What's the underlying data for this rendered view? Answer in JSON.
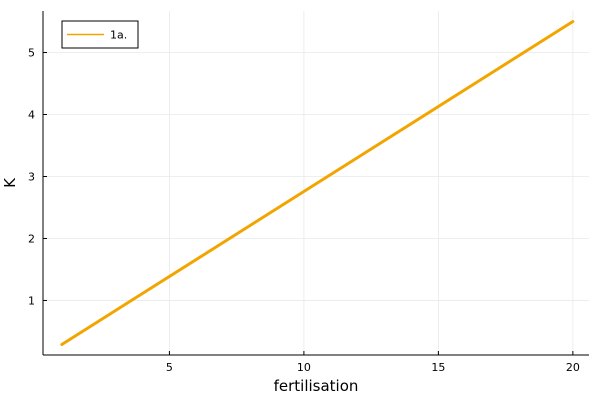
{
  "chart_data": {
    "type": "line",
    "xlabel": "fertilisation",
    "ylabel": "K",
    "xlim": [
      0.3,
      20.6
    ],
    "ylim": [
      0.12,
      5.67
    ],
    "xticks": [
      5,
      10,
      15,
      20
    ],
    "yticks": [
      1,
      2,
      3,
      4,
      5
    ],
    "grid": true,
    "legend_position": "top-left",
    "series": [
      {
        "name": "1a.",
        "color": "#f2a500",
        "x": [
          1,
          20
        ],
        "y": [
          0.29,
          5.5
        ]
      }
    ]
  }
}
